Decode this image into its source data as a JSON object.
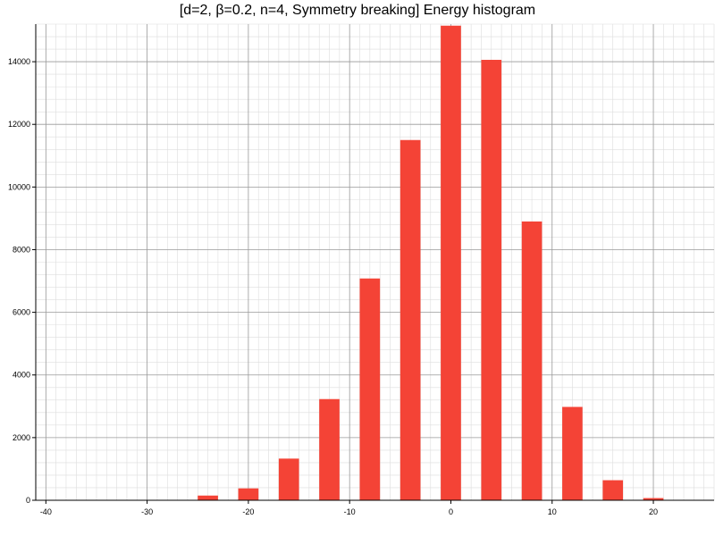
{
  "chart_data": {
    "type": "bar",
    "title": "[d=2, β=0.2, n=4, Symmetry breaking] Energy histogram",
    "xlabel": "",
    "ylabel": "",
    "x": [
      -40,
      -36,
      -32,
      -28,
      -24,
      -20,
      -16,
      -12,
      -8,
      -4,
      0,
      4,
      8,
      12,
      16,
      20,
      24
    ],
    "values": [
      0,
      0,
      0,
      0,
      150,
      380,
      1330,
      3230,
      7080,
      11500,
      15150,
      14060,
      8900,
      2980,
      640,
      70,
      0
    ],
    "xlim": [
      -41,
      26
    ],
    "ylim": [
      0,
      15200
    ],
    "x_ticks": [
      -40,
      -30,
      -20,
      -10,
      0,
      10,
      20
    ],
    "y_ticks": [
      0,
      2000,
      4000,
      6000,
      8000,
      10000,
      12000,
      14000
    ],
    "grid": true,
    "bar_color": "#f44336",
    "grid_major_color": "#999999",
    "grid_minor_color": "#dddddd"
  }
}
